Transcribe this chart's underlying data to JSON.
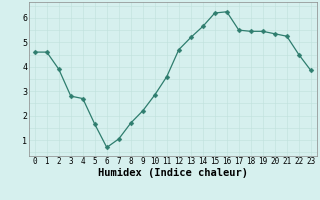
{
  "x": [
    0,
    1,
    2,
    3,
    4,
    5,
    6,
    7,
    8,
    9,
    10,
    11,
    12,
    13,
    14,
    15,
    16,
    17,
    18,
    19,
    20,
    21,
    22,
    23
  ],
  "y": [
    4.6,
    4.6,
    3.9,
    2.8,
    2.7,
    1.65,
    0.7,
    1.05,
    1.7,
    2.2,
    2.85,
    3.6,
    4.7,
    5.2,
    5.65,
    6.2,
    6.25,
    5.5,
    5.45,
    5.45,
    5.35,
    5.25,
    4.5,
    3.85
  ],
  "line_color": "#2e7d6e",
  "marker": "D",
  "marker_size": 2.5,
  "bg_color": "#d6f0ee",
  "grid_color": "#c0e0dc",
  "border_color": "#888888",
  "xlabel": "Humidex (Indice chaleur)",
  "xlabel_fontsize": 7.5,
  "yticks": [
    1,
    2,
    3,
    4,
    5,
    6
  ],
  "xtick_labels": [
    "0",
    "1",
    "2",
    "3",
    "4",
    "5",
    "6",
    "7",
    "8",
    "9",
    "10",
    "11",
    "12",
    "13",
    "14",
    "15",
    "16",
    "17",
    "18",
    "19",
    "20",
    "21",
    "22",
    "23"
  ],
  "ylim": [
    0.35,
    6.65
  ],
  "xlim": [
    -0.5,
    23.5
  ],
  "tick_fontsize": 6.0,
  "linewidth": 0.9
}
